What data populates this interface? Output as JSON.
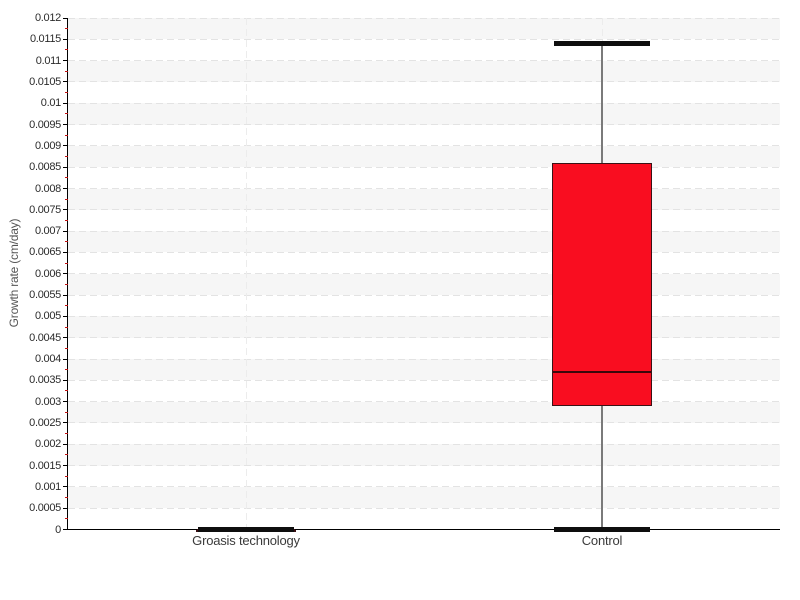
{
  "chart_data": {
    "type": "boxplot",
    "title": "",
    "xlabel": "",
    "ylabel": "Growth rate (cm/day)",
    "categories": [
      "Groasis technology",
      "Control"
    ],
    "series": [
      {
        "name": "Groasis technology",
        "min": 0,
        "q1": 0,
        "median": 0,
        "q3": 0,
        "max": 0
      },
      {
        "name": "Control",
        "min": 0,
        "q1": 0.0029,
        "median": 0.0037,
        "q3": 0.0086,
        "max": 0.0114
      }
    ],
    "ylim": [
      0,
      0.012
    ],
    "ytick_step": 0.0005,
    "ytick_labels": [
      "0",
      "0.0005",
      "0.001",
      "0.0015",
      "0.002",
      "0.0025",
      "0.003",
      "0.0035",
      "0.004",
      "0.0045",
      "0.005",
      "0.0055",
      "0.006",
      "0.0065",
      "0.007",
      "0.0075",
      "0.008",
      "0.0085",
      "0.009",
      "0.0095",
      "0.01",
      "0.0105",
      "0.011",
      "0.0115",
      "0.012"
    ],
    "legend": "none",
    "grid": "horizontal dashed lines at every y tick, vertical dashed line at each category center, alternating background bands",
    "colors": {
      "box_fill": "#f90d20",
      "box_border": "#3a1216",
      "median": "#3c070b",
      "whisker": "#7a7a7a",
      "whisker_cap": "#0e0e0e",
      "axis": "#000000",
      "major_tick": "#000000",
      "minor_tick": "#c11212",
      "band_gray": "#f6f6f6",
      "band_white": "#ffffff",
      "gridline": "#e3e3e3",
      "category_gridline": "#ececec",
      "tick_text": "#2b2b2b",
      "category_text": "#3a3a3a",
      "axis_title_text": "#555555"
    }
  }
}
